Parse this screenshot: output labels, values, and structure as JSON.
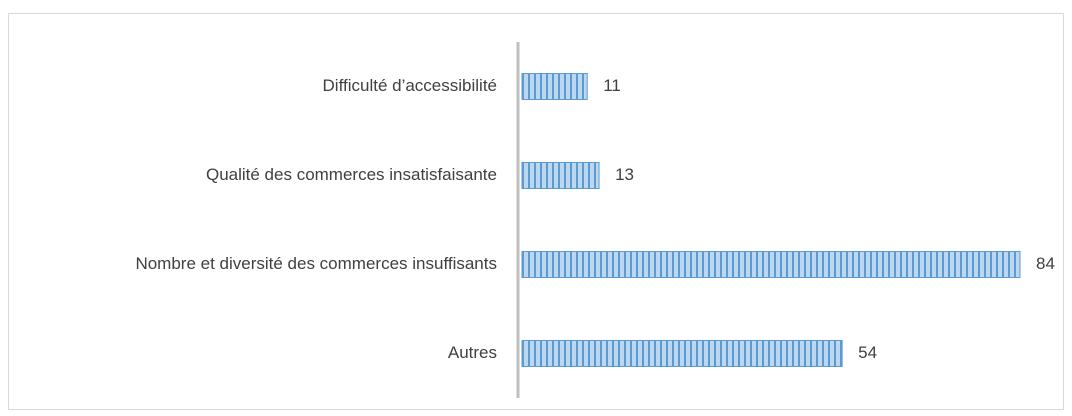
{
  "chart_data": {
    "type": "barh",
    "categories": [
      "Difficulté d’accessibilité",
      "Qualité des commerces insatisfaisante",
      "Nombre et diversité des commerces insuffisants",
      "Autres"
    ],
    "values": [
      11,
      13,
      84,
      54
    ],
    "color": "#5b9bd5"
  }
}
